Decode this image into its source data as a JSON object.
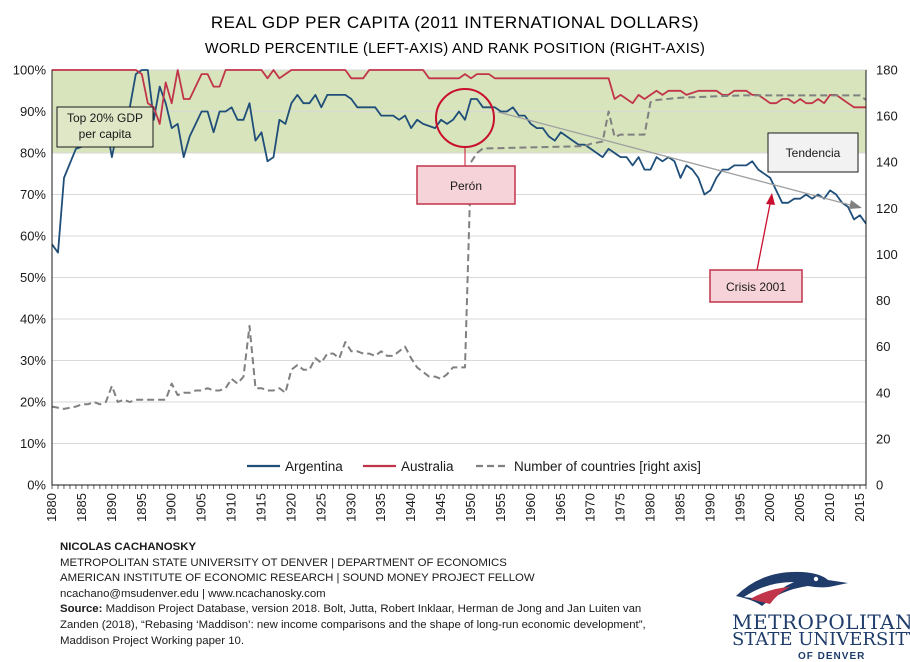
{
  "chart_data": {
    "type": "line",
    "title": "REAL GDP PER CAPITA (2011 INTERNATIONAL  DOLLARS)",
    "subtitle": "WORLD PERCENTILE (LEFT-AXIS) AND RANK  POSITION (RIGHT-AXIS)",
    "xlim": [
      1880,
      2016
    ],
    "ylim": [
      0,
      100
    ],
    "y2lim": [
      0,
      180
    ],
    "x_ticks": [
      1880,
      1885,
      1890,
      1895,
      1900,
      1905,
      1910,
      1915,
      1920,
      1925,
      1930,
      1935,
      1940,
      1945,
      1950,
      1955,
      1960,
      1965,
      1970,
      1975,
      1980,
      1985,
      1990,
      1995,
      2000,
      2005,
      2010,
      2015
    ],
    "y_ticks": [
      0,
      10,
      20,
      30,
      40,
      50,
      60,
      70,
      80,
      90,
      100
    ],
    "y_tick_labels": [
      "0%",
      "10%",
      "20%",
      "30%",
      "40%",
      "50%",
      "60%",
      "70%",
      "80%",
      "90%",
      "100%"
    ],
    "y2_ticks": [
      0,
      20,
      40,
      60,
      80,
      100,
      120,
      140,
      160,
      180
    ],
    "top20_band": [
      80,
      100
    ],
    "top20_label": [
      "Top 20% GDP",
      "per capita"
    ],
    "legend_placement": "bottom",
    "series": [
      {
        "name": "Argentina",
        "axis": "left",
        "color": "#1f4e79",
        "points": [
          [
            1880,
            58
          ],
          [
            1881,
            56
          ],
          [
            1882,
            74
          ],
          [
            1884,
            81
          ],
          [
            1886,
            82
          ],
          [
            1888,
            84
          ],
          [
            1889,
            87
          ],
          [
            1890,
            79
          ],
          [
            1891,
            86
          ],
          [
            1892,
            88
          ],
          [
            1893,
            91
          ],
          [
            1894,
            99
          ],
          [
            1895,
            100
          ],
          [
            1896,
            100
          ],
          [
            1897,
            88
          ],
          [
            1898,
            96
          ],
          [
            1899,
            92
          ],
          [
            1900,
            86
          ],
          [
            1901,
            87
          ],
          [
            1902,
            79
          ],
          [
            1903,
            84
          ],
          [
            1905,
            90
          ],
          [
            1906,
            90
          ],
          [
            1907,
            85
          ],
          [
            1908,
            90
          ],
          [
            1909,
            90
          ],
          [
            1910,
            91
          ],
          [
            1911,
            88
          ],
          [
            1912,
            88
          ],
          [
            1913,
            92
          ],
          [
            1914,
            83
          ],
          [
            1915,
            85
          ],
          [
            1916,
            78
          ],
          [
            1917,
            79
          ],
          [
            1918,
            88
          ],
          [
            1919,
            87
          ],
          [
            1920,
            92
          ],
          [
            1921,
            94
          ],
          [
            1922,
            92
          ],
          [
            1923,
            92
          ],
          [
            1924,
            94
          ],
          [
            1925,
            91
          ],
          [
            1926,
            94
          ],
          [
            1928,
            94
          ],
          [
            1929,
            94
          ],
          [
            1930,
            93
          ],
          [
            1931,
            91
          ],
          [
            1934,
            91
          ],
          [
            1935,
            89
          ],
          [
            1937,
            89
          ],
          [
            1938,
            88
          ],
          [
            1939,
            89
          ],
          [
            1940,
            86
          ],
          [
            1941,
            88
          ],
          [
            1942,
            87
          ],
          [
            1944,
            86
          ],
          [
            1945,
            88
          ],
          [
            1946,
            87
          ],
          [
            1947,
            88
          ],
          [
            1948,
            90
          ],
          [
            1949,
            88
          ],
          [
            1950,
            93
          ],
          [
            1951,
            93
          ],
          [
            1952,
            91
          ],
          [
            1954,
            91
          ],
          [
            1955,
            90
          ],
          [
            1956,
            90
          ],
          [
            1957,
            91
          ],
          [
            1958,
            89
          ],
          [
            1959,
            89
          ],
          [
            1960,
            87
          ],
          [
            1961,
            86
          ],
          [
            1962,
            86
          ],
          [
            1963,
            84
          ],
          [
            1964,
            83
          ],
          [
            1965,
            85
          ],
          [
            1966,
            84
          ],
          [
            1967,
            83
          ],
          [
            1968,
            82
          ],
          [
            1969,
            82
          ],
          [
            1970,
            81
          ],
          [
            1971,
            80
          ],
          [
            1972,
            79
          ],
          [
            1973,
            81
          ],
          [
            1974,
            80
          ],
          [
            1975,
            79
          ],
          [
            1976,
            79
          ],
          [
            1977,
            77
          ],
          [
            1978,
            79
          ],
          [
            1979,
            76
          ],
          [
            1980,
            76
          ],
          [
            1981,
            79
          ],
          [
            1982,
            78
          ],
          [
            1983,
            79
          ],
          [
            1984,
            78
          ],
          [
            1985,
            74
          ],
          [
            1986,
            77
          ],
          [
            1987,
            76
          ],
          [
            1988,
            74
          ],
          [
            1989,
            70
          ],
          [
            1990,
            71
          ],
          [
            1991,
            74
          ],
          [
            1992,
            76
          ],
          [
            1993,
            76
          ],
          [
            1994,
            77
          ],
          [
            1995,
            77
          ],
          [
            1996,
            77
          ],
          [
            1997,
            78
          ],
          [
            1998,
            76
          ],
          [
            1999,
            75
          ],
          [
            2000,
            74
          ],
          [
            2001,
            71
          ],
          [
            2002,
            68
          ],
          [
            2003,
            68
          ],
          [
            2004,
            69
          ],
          [
            2005,
            69
          ],
          [
            2006,
            70
          ],
          [
            2007,
            69
          ],
          [
            2008,
            70
          ],
          [
            2009,
            69
          ],
          [
            2010,
            71
          ],
          [
            2011,
            70
          ],
          [
            2012,
            68
          ],
          [
            2013,
            67
          ],
          [
            2014,
            64
          ],
          [
            2015,
            65
          ],
          [
            2016,
            63
          ]
        ]
      },
      {
        "name": "Australia",
        "axis": "left",
        "color": "#c0354a",
        "points": [
          [
            1880,
            100
          ],
          [
            1894,
            100
          ],
          [
            1895,
            99
          ],
          [
            1896,
            92
          ],
          [
            1897,
            91
          ],
          [
            1898,
            87
          ],
          [
            1899,
            97
          ],
          [
            1900,
            92
          ],
          [
            1901,
            100
          ],
          [
            1902,
            93
          ],
          [
            1903,
            93
          ],
          [
            1904,
            96
          ],
          [
            1905,
            99
          ],
          [
            1906,
            99
          ],
          [
            1907,
            96
          ],
          [
            1908,
            96
          ],
          [
            1909,
            100
          ],
          [
            1915,
            100
          ],
          [
            1916,
            98
          ],
          [
            1917,
            100
          ],
          [
            1918,
            98
          ],
          [
            1919,
            99
          ],
          [
            1920,
            100
          ],
          [
            1929,
            100
          ],
          [
            1930,
            98
          ],
          [
            1932,
            98
          ],
          [
            1933,
            100
          ],
          [
            1942,
            100
          ],
          [
            1943,
            98
          ],
          [
            1948,
            98
          ],
          [
            1949,
            99
          ],
          [
            1950,
            98
          ],
          [
            1951,
            99
          ],
          [
            1953,
            99
          ],
          [
            1954,
            98
          ],
          [
            1973,
            98
          ],
          [
            1974,
            93
          ],
          [
            1975,
            94
          ],
          [
            1976,
            93
          ],
          [
            1977,
            92
          ],
          [
            1978,
            94
          ],
          [
            1979,
            93
          ],
          [
            1980,
            94
          ],
          [
            1981,
            95
          ],
          [
            1982,
            94
          ],
          [
            1983,
            95
          ],
          [
            1985,
            95
          ],
          [
            1986,
            94
          ],
          [
            1988,
            95
          ],
          [
            1991,
            95
          ],
          [
            1992,
            94
          ],
          [
            1993,
            94
          ],
          [
            1994,
            95
          ],
          [
            1996,
            95
          ],
          [
            1997,
            94
          ],
          [
            1998,
            94
          ],
          [
            1999,
            93
          ],
          [
            2000,
            92
          ],
          [
            2001,
            92
          ],
          [
            2002,
            93
          ],
          [
            2003,
            93
          ],
          [
            2004,
            92
          ],
          [
            2005,
            93
          ],
          [
            2006,
            92
          ],
          [
            2007,
            92
          ],
          [
            2008,
            93
          ],
          [
            2009,
            92
          ],
          [
            2010,
            94
          ],
          [
            2011,
            94
          ],
          [
            2012,
            93
          ],
          [
            2013,
            92
          ],
          [
            2014,
            91
          ],
          [
            2016,
            91
          ]
        ]
      },
      {
        "name": "Number of countries [right axis]",
        "axis": "right",
        "color": "#808080",
        "dashed": true,
        "points": [
          [
            1880,
            34
          ],
          [
            1882,
            33
          ],
          [
            1884,
            34
          ],
          [
            1885,
            35
          ],
          [
            1886,
            35
          ],
          [
            1887,
            36
          ],
          [
            1888,
            35
          ],
          [
            1889,
            36
          ],
          [
            1890,
            43
          ],
          [
            1891,
            36
          ],
          [
            1892,
            37
          ],
          [
            1893,
            36
          ],
          [
            1894,
            37
          ],
          [
            1895,
            37
          ],
          [
            1898,
            37
          ],
          [
            1899,
            37
          ],
          [
            1900,
            44
          ],
          [
            1901,
            39
          ],
          [
            1902,
            40
          ],
          [
            1903,
            40
          ],
          [
            1904,
            41
          ],
          [
            1905,
            41
          ],
          [
            1906,
            42
          ],
          [
            1907,
            41
          ],
          [
            1908,
            41
          ],
          [
            1909,
            42
          ],
          [
            1910,
            46
          ],
          [
            1911,
            44
          ],
          [
            1912,
            47
          ],
          [
            1913,
            69
          ],
          [
            1914,
            42
          ],
          [
            1915,
            42
          ],
          [
            1916,
            41
          ],
          [
            1917,
            41
          ],
          [
            1918,
            42
          ],
          [
            1919,
            40
          ],
          [
            1920,
            50
          ],
          [
            1921,
            52
          ],
          [
            1922,
            50
          ],
          [
            1923,
            50
          ],
          [
            1924,
            55
          ],
          [
            1925,
            53
          ],
          [
            1926,
            57
          ],
          [
            1927,
            57
          ],
          [
            1928,
            55
          ],
          [
            1929,
            62
          ],
          [
            1930,
            58
          ],
          [
            1931,
            58
          ],
          [
            1932,
            57
          ],
          [
            1933,
            57
          ],
          [
            1934,
            56
          ],
          [
            1935,
            58
          ],
          [
            1936,
            56
          ],
          [
            1937,
            56
          ],
          [
            1938,
            58
          ],
          [
            1939,
            60
          ],
          [
            1940,
            55
          ],
          [
            1941,
            51
          ],
          [
            1942,
            49
          ],
          [
            1943,
            47
          ],
          [
            1944,
            47
          ],
          [
            1945,
            46
          ],
          [
            1946,
            48
          ],
          [
            1947,
            51
          ],
          [
            1948,
            51
          ],
          [
            1949,
            51
          ],
          [
            1950,
            140
          ],
          [
            1951,
            144
          ],
          [
            1952,
            146
          ],
          [
            1953,
            146
          ],
          [
            1969,
            147
          ],
          [
            1970,
            148
          ],
          [
            1972,
            149
          ],
          [
            1973,
            162
          ],
          [
            1974,
            151
          ],
          [
            1975,
            152
          ],
          [
            1979,
            152
          ],
          [
            1980,
            166
          ],
          [
            1981,
            167
          ],
          [
            1985,
            168
          ],
          [
            1995,
            169
          ],
          [
            2015,
            169
          ],
          [
            2016,
            167
          ]
        ]
      }
    ],
    "annotations": [
      {
        "label": "Perón",
        "circle_center": [
          1949,
          89
        ],
        "box_center": [
          1950,
          72
        ]
      },
      {
        "label": "Tendencia",
        "box_center": [
          2010,
          79
        ],
        "arrow_from": [
          1951,
          91
        ],
        "arrow_to": [
          2015,
          66
        ]
      },
      {
        "label": "Crisis 2001",
        "box_center": [
          1999,
          48
        ],
        "arrow_to": [
          2000,
          68
        ]
      }
    ]
  },
  "credits": {
    "author": "NICOLAS CACHANOSKY",
    "line1": "METROPOLITAN  STATE UNIVERSITY  OT DENVER  |  DEPARTMENT  OF ECONOMICS",
    "line2": "AMERICAN  INSTITUTE OF ECONOMIC RESEARCH  |  SOUND  MONEY  PROJECT FELLOW",
    "line3": "ncachano@msudenver.edu  |  www.ncachanosky.com",
    "source_label": "Source:",
    "source_line1": " Maddison Project Database, version 2018. Bolt, Jutta,  Robert  Inklaar, Herman de Jong and Jan Luiten van",
    "source_line2": "Zanden (2018), “Rebasing ‘Maddison’: new income comparisons and the shape of long-run economic development”,",
    "source_line3": "Maddison Project Working paper 10."
  },
  "logo": {
    "word1": "METROPOLITAN",
    "word2": "STATE UNIVERSITY",
    "word3": "OF DENVER",
    "colors": {
      "navy": "#1f3c6b",
      "red": "#c0354a"
    }
  }
}
